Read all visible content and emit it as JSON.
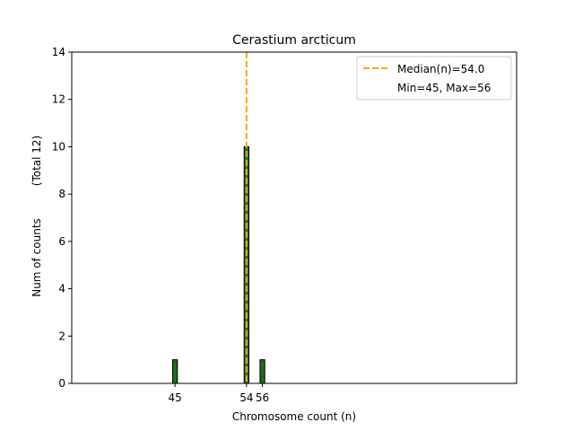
{
  "chart_data": {
    "type": "bar",
    "title": "Cerastium arcticum",
    "xlabel": "Chromosome count (n)",
    "ylabel": "Num of counts",
    "ylabel_total": "(Total 12)",
    "xlim": [
      32,
      88
    ],
    "ylim": [
      0,
      14
    ],
    "yticks": [
      0,
      2,
      4,
      6,
      8,
      10,
      12,
      14
    ],
    "xticks": [
      45,
      54,
      56
    ],
    "bars": [
      {
        "x": 45,
        "value": 1
      },
      {
        "x": 54,
        "value": 10
      },
      {
        "x": 56,
        "value": 1
      }
    ],
    "median": {
      "value": 54.0,
      "label": "Median(n)=54.0"
    },
    "range_label": "Min=45, Max=56",
    "legend_position": "top-right",
    "grid": false,
    "colors": {
      "bar_fill": "#1f6e1f",
      "bar_edge": "#000000",
      "median_line": "#ffa500"
    }
  }
}
